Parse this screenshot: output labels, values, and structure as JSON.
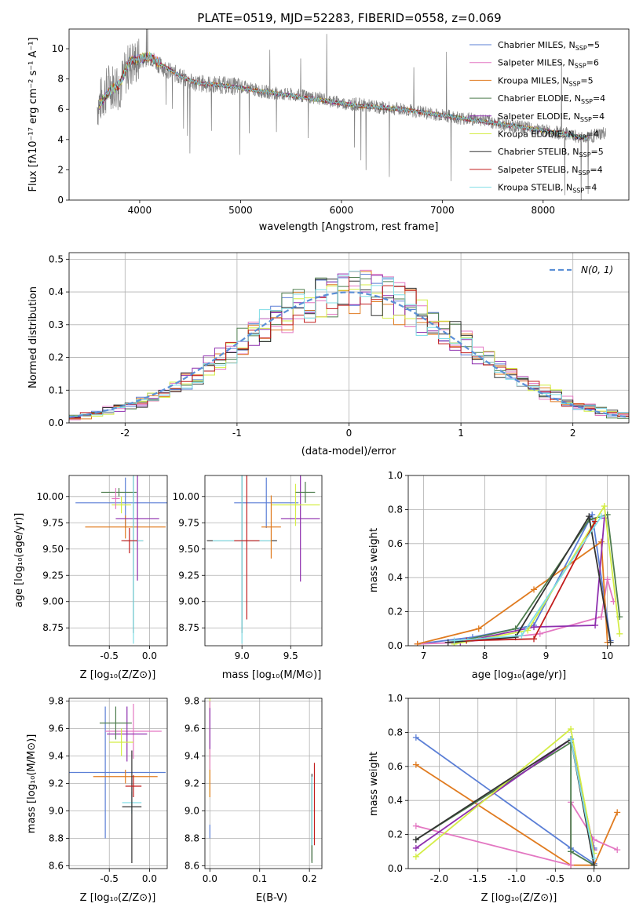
{
  "chart_data": [
    {
      "id": "spectrum",
      "type": "line",
      "title": "PLATE=0519, MJD=52283, FIBERID=0558, z=0.069",
      "xlabel": "wavelength [Angstrom, rest frame]",
      "ylabel": "Flux [fλ10⁻¹⁷ erg cm⁻² s⁻¹ A⁻¹]",
      "xlim": [
        3300,
        8850
      ],
      "ylim": [
        0,
        11.3
      ],
      "xticks": [
        4000,
        5000,
        6000,
        7000,
        8000
      ],
      "yticks": [
        0,
        2,
        4,
        6,
        8,
        10
      ],
      "grid": false,
      "legend_position": "top-right",
      "data": {
        "name": "data",
        "x": [
          3580,
          3700,
          3800,
          3900,
          4000,
          4100,
          4200,
          4300,
          4400,
          4500,
          4600,
          4800,
          5000,
          5200,
          5400,
          5600,
          5800,
          6000,
          6200,
          6400,
          6600,
          6800,
          7000,
          7200,
          7400,
          7600,
          7800,
          8000,
          8200,
          8400,
          8600
        ],
        "y": [
          6.2,
          7.6,
          7.5,
          9.0,
          9.2,
          9.5,
          8.9,
          8.5,
          8.2,
          7.8,
          7.7,
          7.6,
          7.5,
          7.2,
          7.0,
          6.9,
          6.7,
          6.4,
          6.3,
          6.1,
          6.0,
          5.8,
          5.6,
          5.4,
          5.3,
          5.0,
          4.8,
          4.6,
          4.4,
          4.1,
          4.4
        ]
      },
      "models": {
        "x": [
          3580,
          3700,
          3800,
          3900,
          4000,
          4100,
          4200,
          4300,
          4400,
          4500,
          4600,
          4800,
          5000,
          5200,
          5400,
          5600,
          5800,
          6000,
          6200,
          6400,
          6600,
          6800,
          7000,
          7200,
          7400,
          7600,
          7800,
          8000,
          8200,
          8400
        ],
        "y": [
          6.1,
          7.2,
          7.6,
          9.2,
          9.3,
          9.5,
          9.0,
          8.6,
          8.2,
          7.9,
          7.7,
          7.6,
          7.4,
          7.2,
          7.0,
          6.8,
          6.6,
          6.4,
          6.2,
          6.1,
          6.0,
          5.8,
          5.6,
          5.4,
          5.2,
          5.0,
          4.8,
          4.6,
          4.4,
          4.1
        ]
      },
      "series": [
        {
          "name": "Chabrier MILES, N_SSP=5",
          "color": "#5b7fd6"
        },
        {
          "name": "Salpeter MILES, N_SSP=6",
          "color": "#e377c2"
        },
        {
          "name": "Kroupa MILES, N_SSP=5",
          "color": "#e07b20"
        },
        {
          "name": "Chabrier ELODIE, N_SSP=4",
          "color": "#4e7d4e"
        },
        {
          "name": "Salpeter ELODIE, N_SSP=4",
          "color": "#8e2fae"
        },
        {
          "name": "Kroupa ELODIE, N_SSP=4",
          "color": "#d4ed45"
        },
        {
          "name": "Chabrier STELIB, N_SSP=5",
          "color": "#333333"
        },
        {
          "name": "Salpeter STELIB, N_SSP=4",
          "color": "#c21d1d"
        },
        {
          "name": "Kroupa STELIB, N_SSP=4",
          "color": "#7fdde6"
        }
      ],
      "legend_labels": [
        {
          "pre": "Chabrier MILES, N",
          "sub": "SSP",
          "post": "=5"
        },
        {
          "pre": "Salpeter MILES, N",
          "sub": "SSP",
          "post": "=6"
        },
        {
          "pre": "Kroupa MILES, N",
          "sub": "SSP",
          "post": "=5"
        },
        {
          "pre": "Chabrier ELODIE, N",
          "sub": "SSP",
          "post": "=4"
        },
        {
          "pre": "Salpeter ELODIE, N",
          "sub": "SSP",
          "post": "=4"
        },
        {
          "pre": "Kroupa ELODIE, N",
          "sub": "SSP",
          "post": "=4"
        },
        {
          "pre": "Chabrier STELIB, N",
          "sub": "SSP",
          "post": "=5"
        },
        {
          "pre": "Salpeter STELIB, N",
          "sub": "SSP",
          "post": "=4"
        },
        {
          "pre": "Kroupa STELIB, N",
          "sub": "SSP",
          "post": "=4"
        }
      ]
    },
    {
      "id": "residuals",
      "type": "line",
      "xlabel": "(data-model)/error",
      "ylabel": "Normed distribution",
      "xlim": [
        -2.5,
        2.5
      ],
      "ylim": [
        0,
        0.52
      ],
      "xticks": [
        -2,
        -1,
        0,
        1,
        2
      ],
      "yticks": [
        0.0,
        0.1,
        0.2,
        0.3,
        0.4,
        0.5
      ],
      "grid": true,
      "legend_position": "top-right",
      "gaussian_label": "N(0, 1)",
      "bin_width": 0.1
    },
    {
      "id": "age_vs_Z",
      "type": "scatter",
      "xlabel": "Z [log₁₀(Z/Z⊙)]",
      "ylabel": "age  [log₁₀(age/yr)]",
      "xlim": [
        -1.0,
        0.22
      ],
      "ylim": [
        8.58,
        10.2
      ],
      "xticks": [
        -0.5,
        0.0
      ],
      "yticks": [
        8.75,
        9.0,
        9.25,
        9.5,
        9.75,
        10.0
      ],
      "grid": true,
      "points": [
        {
          "x": -0.3,
          "y": 9.94,
          "xerr": 0.62,
          "yerr": 0.24,
          "c": 0
        },
        {
          "x": -0.3,
          "y": 9.71,
          "xerr": 0.5,
          "yerr": 0.11,
          "c": 2
        },
        {
          "x": -0.15,
          "y": 9.79,
          "xerr": 0.27,
          "yerr": 0.59,
          "c": 4
        },
        {
          "x": -0.38,
          "y": 10.04,
          "xerr": 0.22,
          "yerr": 0.04,
          "c": 3
        },
        {
          "x": -0.2,
          "y": 9.58,
          "xerr": 0.12,
          "yerr": 0.88,
          "c": 6
        },
        {
          "x": -0.2,
          "y": 9.58,
          "xerr": 0.12,
          "yerr": 0.98,
          "c": 8
        },
        {
          "x": -0.25,
          "y": 9.58,
          "xerr": 0.1,
          "yerr": 0.12,
          "c": 7
        },
        {
          "x": -0.35,
          "y": 9.92,
          "xerr": 0.12,
          "yerr": 0.08,
          "c": 5
        },
        {
          "x": -0.42,
          "y": 9.98,
          "xerr": 0.05,
          "yerr": 0.1,
          "c": 1
        }
      ]
    },
    {
      "id": "age_vs_mass",
      "type": "scatter",
      "xlabel": "mass [log₁₀(M/M⊙)]",
      "ylabel": "",
      "xlim": [
        8.62,
        9.82
      ],
      "ylim": [
        8.58,
        10.2
      ],
      "xticks": [
        9.0,
        9.5
      ],
      "yticks": [
        8.75,
        9.0,
        9.25,
        9.5,
        9.75,
        10.0
      ],
      "grid": true,
      "points": [
        {
          "x": 9.25,
          "y": 9.94,
          "xerr": 0.33,
          "yerr": 0.24,
          "c": 0
        },
        {
          "x": 9.6,
          "y": 9.79,
          "xerr": 0.2,
          "yerr": 0.6,
          "c": 4
        },
        {
          "x": 9.55,
          "y": 9.92,
          "xerr": 0.25,
          "yerr": 0.2,
          "c": 5
        },
        {
          "x": 9.65,
          "y": 10.04,
          "xerr": 0.1,
          "yerr": 0.1,
          "c": 3
        },
        {
          "x": 9.0,
          "y": 9.58,
          "xerr": 0.36,
          "yerr": 0.88,
          "c": 6
        },
        {
          "x": 9.0,
          "y": 9.58,
          "xerr": 0.3,
          "yerr": 0.98,
          "c": 8
        },
        {
          "x": 9.05,
          "y": 9.58,
          "xerr": 0.13,
          "yerr": 0.75,
          "c": 7
        },
        {
          "x": 9.3,
          "y": 9.71,
          "xerr": 0.1,
          "yerr": 0.3,
          "c": 2
        }
      ]
    },
    {
      "id": "weight_vs_age",
      "type": "line",
      "xlabel": "age  [log₁₀(age/yr)]",
      "ylabel": "mass weight",
      "xlim": [
        6.75,
        10.35
      ],
      "ylim": [
        0,
        1.0
      ],
      "xticks": [
        7,
        8,
        9,
        10
      ],
      "yticks": [
        0.0,
        0.2,
        0.4,
        0.6,
        0.8,
        1.0
      ],
      "grid": true,
      "series": [
        {
          "c": 0,
          "x": [
            6.9,
            7.8,
            8.8,
            9.75,
            10.05
          ],
          "y": [
            0.01,
            0.05,
            0.12,
            0.77,
            0.03
          ]
        },
        {
          "c": 1,
          "x": [
            6.9,
            7.6,
            8.9,
            9.9,
            10.0,
            10.1
          ],
          "y": [
            0.01,
            0.02,
            0.07,
            0.17,
            0.39,
            0.26
          ]
        },
        {
          "c": 2,
          "x": [
            6.9,
            7.9,
            8.8,
            9.9,
            10.0
          ],
          "y": [
            0.01,
            0.1,
            0.33,
            0.61,
            0.02
          ]
        },
        {
          "c": 3,
          "x": [
            7.5,
            8.5,
            9.7,
            10.0,
            10.2
          ],
          "y": [
            0.02,
            0.1,
            0.74,
            0.77,
            0.17
          ]
        },
        {
          "c": 4,
          "x": [
            7.6,
            8.8,
            9.8,
            9.95
          ],
          "y": [
            0.02,
            0.11,
            0.12,
            0.75
          ]
        },
        {
          "c": 5,
          "x": [
            7.5,
            8.7,
            9.95,
            10.2
          ],
          "y": [
            0.01,
            0.09,
            0.82,
            0.07
          ]
        },
        {
          "c": 6,
          "x": [
            7.4,
            8.5,
            9.7,
            10.05
          ],
          "y": [
            0.02,
            0.05,
            0.76,
            0.02
          ]
        },
        {
          "c": 7,
          "x": [
            7.7,
            8.8,
            9.8
          ],
          "y": [
            0.03,
            0.04,
            0.73
          ]
        },
        {
          "c": 8,
          "x": [
            7.5,
            8.6,
            9.9
          ],
          "y": [
            0.03,
            0.06,
            0.76
          ]
        }
      ]
    },
    {
      "id": "mass_vs_Z",
      "type": "scatter",
      "xlabel": "Z [log₁₀(Z/Z⊙)]",
      "ylabel": "mass [log₁₀(M/M⊙)]",
      "xlim": [
        -1.0,
        0.22
      ],
      "ylim": [
        8.58,
        9.82
      ],
      "xticks": [
        -0.5,
        0.0
      ],
      "yticks": [
        8.6,
        8.8,
        9.0,
        9.2,
        9.4,
        9.6,
        9.8
      ],
      "grid": true,
      "points": [
        {
          "x": -0.55,
          "y": 9.28,
          "xerr": 0.75,
          "yerr": 0.48,
          "c": 0
        },
        {
          "x": -0.3,
          "y": 9.25,
          "xerr": 0.4,
          "yerr": 0.05,
          "c": 2
        },
        {
          "x": -0.2,
          "y": 9.58,
          "xerr": 0.35,
          "yerr": 0.2,
          "c": 1
        },
        {
          "x": -0.28,
          "y": 9.56,
          "xerr": 0.25,
          "yerr": 0.2,
          "c": 4
        },
        {
          "x": -0.42,
          "y": 9.64,
          "xerr": 0.2,
          "yerr": 0.12,
          "c": 3
        },
        {
          "x": -0.22,
          "y": 9.06,
          "xerr": 0.12,
          "yerr": 0.08,
          "c": 8
        },
        {
          "x": -0.22,
          "y": 9.03,
          "xerr": 0.12,
          "yerr": 0.41,
          "c": 6
        },
        {
          "x": -0.2,
          "y": 9.18,
          "xerr": 0.1,
          "yerr": 0.08,
          "c": 7
        },
        {
          "x": -0.35,
          "y": 9.5,
          "xerr": 0.15,
          "yerr": 0.1,
          "c": 5
        }
      ]
    },
    {
      "id": "mass_vs_ebv",
      "type": "scatter",
      "xlabel": "E(B-V)",
      "ylabel": "",
      "xlim": [
        -0.01,
        0.225
      ],
      "ylim": [
        8.58,
        9.82
      ],
      "xticks": [
        0.0,
        0.1,
        0.2
      ],
      "yticks": [
        8.6,
        8.8,
        9.0,
        9.2,
        9.4,
        9.6,
        9.8
      ],
      "grid": true,
      "points": [
        {
          "x": 0.0,
          "y": 9.5,
          "xerr": 0,
          "yerr": 0.4,
          "c": 5
        },
        {
          "x": 0.0,
          "y": 9.55,
          "xerr": 0,
          "yerr": 0.25,
          "c": 1
        },
        {
          "x": 0.0,
          "y": 9.2,
          "xerr": 0,
          "yerr": 0.1,
          "c": 2
        },
        {
          "x": 0.0,
          "y": 9.6,
          "xerr": 0,
          "yerr": 0.15,
          "c": 4
        },
        {
          "x": 0.0,
          "y": 8.85,
          "xerr": 0,
          "yerr": 0.05,
          "c": 0
        },
        {
          "x": 0.205,
          "y": 8.95,
          "xerr": 0,
          "yerr": 0.32,
          "c": 6
        },
        {
          "x": 0.21,
          "y": 9.05,
          "xerr": 0,
          "yerr": 0.3,
          "c": 7
        },
        {
          "x": 0.205,
          "y": 8.9,
          "xerr": 0,
          "yerr": 0.28,
          "c": 3
        },
        {
          "x": 0.205,
          "y": 9.0,
          "xerr": 0,
          "yerr": 0.25,
          "c": 8
        }
      ]
    },
    {
      "id": "weight_vs_Z",
      "type": "line",
      "xlabel": "Z [log₁₀(Z/Z⊙)]",
      "ylabel": "mass weight",
      "xlim": [
        -2.4,
        0.45
      ],
      "ylim": [
        0,
        1.0
      ],
      "xticks": [
        -2.0,
        -1.5,
        -1.0,
        -0.5,
        0.0
      ],
      "yticks": [
        0.0,
        0.2,
        0.4,
        0.6,
        0.8,
        1.0
      ],
      "grid": true,
      "series": [
        {
          "c": 0,
          "x": [
            -2.3,
            -0.3,
            0.0,
            0.0
          ],
          "y": [
            0.77,
            0.12,
            0.03,
            0.12
          ]
        },
        {
          "c": 2,
          "x": [
            -2.3,
            -0.3,
            0.0,
            0.3
          ],
          "y": [
            0.61,
            0.02,
            0.02,
            0.33
          ]
        },
        {
          "c": 1,
          "x": [
            -2.3,
            -0.3,
            -0.3,
            0.0,
            0.3
          ],
          "y": [
            0.25,
            0.02,
            0.39,
            0.17,
            0.11
          ]
        },
        {
          "c": 3,
          "x": [
            -2.3,
            -0.3,
            -0.3,
            0.0
          ],
          "y": [
            0.17,
            0.74,
            0.1,
            0.02
          ]
        },
        {
          "c": 4,
          "x": [
            -2.3,
            -0.3,
            0.0
          ],
          "y": [
            0.12,
            0.76,
            0.11
          ]
        },
        {
          "c": 5,
          "x": [
            -2.3,
            -0.3,
            0.0
          ],
          "y": [
            0.07,
            0.82,
            0.09
          ]
        },
        {
          "c": 6,
          "x": [
            -2.3,
            -0.3,
            0.0
          ],
          "y": [
            0.17,
            0.76,
            0.02
          ]
        },
        {
          "c": 8,
          "x": [
            -0.3,
            0.0
          ],
          "y": [
            0.76,
            0.06
          ]
        }
      ]
    }
  ]
}
